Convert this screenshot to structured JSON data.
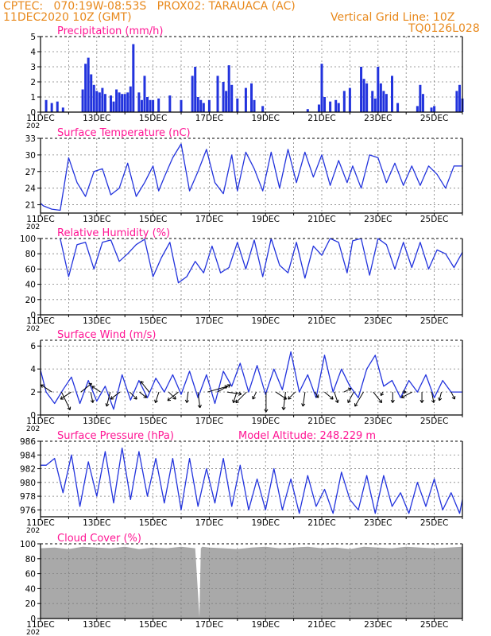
{
  "header": {
    "line1": "CPTEC:   070:19W-08:53S   PROX02: TARAUACA (AC)",
    "line2": "11DEC2020 10Z (GMT)",
    "grid_note": "Vertical Grid Line: 10Z",
    "code": "TQ0126L028"
  },
  "colors": {
    "header": "#e8891c",
    "title": "#ff1493",
    "line": "#2233dd",
    "cloud": "#a9a9a9",
    "grid": "#808080",
    "arrow": "#000000"
  },
  "x_axis": {
    "start_day": 11,
    "end_day": 26,
    "year_marker": "202",
    "tick_labels": [
      "11DEC",
      "13DEC",
      "15DEC",
      "17DEC",
      "19DEC",
      "21DEC",
      "23DEC",
      "25DEC"
    ]
  },
  "panels": [
    {
      "key": "precip",
      "title": "Precipitation (mm/h)",
      "type": "bar",
      "ylim": [
        0,
        5
      ],
      "yticks": [
        "0",
        "1",
        "2",
        "3",
        "4",
        "5"
      ]
    },
    {
      "key": "temp",
      "title": "Surface Temperature (nC)",
      "type": "line",
      "ylim": [
        19.5,
        33
      ],
      "yticks": [
        "21",
        "24",
        "27",
        "30",
        "33"
      ]
    },
    {
      "key": "rh",
      "title": "Relative Humidity (%)",
      "type": "line",
      "ylim": [
        0,
        100
      ],
      "yticks": [
        "0",
        "20",
        "40",
        "60",
        "80",
        "100"
      ]
    },
    {
      "key": "wind",
      "title": "Surface Wind (m/s)",
      "type": "line+vectors",
      "ylim": [
        0,
        6.5
      ],
      "yticks": [
        "0",
        "2",
        "4",
        "6"
      ]
    },
    {
      "key": "pres",
      "title": "Surface Pressure (hPa)",
      "extra": "Model Altitude: 248.229 m",
      "type": "line",
      "ylim": [
        975,
        986
      ],
      "yticks": [
        "976",
        "978",
        "980",
        "982",
        "984",
        "986"
      ]
    },
    {
      "key": "cloud",
      "title": "Cloud Cover (%)",
      "type": "area",
      "ylim": [
        0,
        100
      ],
      "yticks": [
        "0",
        "20",
        "40",
        "60",
        "80",
        "100"
      ]
    }
  ],
  "chart_data": [
    {
      "type": "bar",
      "title": "Precipitation (mm/h)",
      "x_unit": "day of DEC 2020 (GMT)",
      "x": [
        11.2,
        11.4,
        11.6,
        11.8,
        12.5,
        12.6,
        12.7,
        12.8,
        12.9,
        13.0,
        13.1,
        13.2,
        13.3,
        13.5,
        13.6,
        13.7,
        13.8,
        13.9,
        14.0,
        14.1,
        14.2,
        14.3,
        14.5,
        14.6,
        14.7,
        14.8,
        14.9,
        15.0,
        15.2,
        15.6,
        16.0,
        16.4,
        16.5,
        16.6,
        16.7,
        16.8,
        17.0,
        17.3,
        17.5,
        17.6,
        17.7,
        17.8,
        18.0,
        18.3,
        18.5,
        18.6,
        18.9,
        20.5,
        20.9,
        21.0,
        21.1,
        21.3,
        21.5,
        21.6,
        21.8,
        22.0,
        22.4,
        22.5,
        22.6,
        22.8,
        22.9,
        23.0,
        23.1,
        23.2,
        23.3,
        23.5,
        23.7,
        24.4,
        24.5,
        24.6,
        24.9,
        25.0,
        25.8,
        25.9,
        26.0
      ],
      "values": [
        0.8,
        0.6,
        0.7,
        0.3,
        1.5,
        3.2,
        3.6,
        2.5,
        1.8,
        1.4,
        1.3,
        1.6,
        1.2,
        1.1,
        0.7,
        1.5,
        1.3,
        1.2,
        1.2,
        1.3,
        1.7,
        4.5,
        1.3,
        0.8,
        2.4,
        1.0,
        0.8,
        0.8,
        0.9,
        1.1,
        0.8,
        2.4,
        3.0,
        1.0,
        0.8,
        0.6,
        0.8,
        2.4,
        2.0,
        1.4,
        3.1,
        1.8,
        0.9,
        1.6,
        1.9,
        0.8,
        0.4,
        0.2,
        0.5,
        3.2,
        1.0,
        0.7,
        0.8,
        0.6,
        1.4,
        1.6,
        3.0,
        2.2,
        1.9,
        1.4,
        0.9,
        3.0,
        1.9,
        1.4,
        1.2,
        2.4,
        0.6,
        0.4,
        1.8,
        1.2,
        0.3,
        0.4,
        1.4,
        1.8,
        0.9
      ]
    },
    {
      "type": "line",
      "title": "Surface Temperature (nC)",
      "x_unit": "day of DEC 2020 (GMT)",
      "x": [
        11.0,
        11.1,
        11.4,
        11.7,
        12.0,
        12.3,
        12.6,
        12.9,
        13.2,
        13.5,
        13.8,
        14.1,
        14.4,
        14.7,
        15.0,
        15.2,
        15.4,
        15.7,
        16.0,
        16.3,
        16.6,
        16.9,
        17.2,
        17.5,
        17.8,
        18.0,
        18.3,
        18.6,
        18.9,
        19.2,
        19.5,
        19.8,
        20.1,
        20.4,
        20.7,
        21.0,
        21.3,
        21.6,
        21.9,
        22.1,
        22.4,
        22.7,
        23.0,
        23.3,
        23.6,
        23.9,
        24.2,
        24.5,
        24.8,
        25.1,
        25.4,
        25.7,
        26.0
      ],
      "values": [
        21.3,
        20.8,
        20.2,
        20.0,
        29.5,
        25.0,
        22.5,
        27.0,
        27.5,
        22.8,
        24.0,
        28.5,
        22.5,
        25.0,
        28.0,
        23.5,
        26.0,
        29.5,
        32.0,
        23.5,
        27.0,
        31.0,
        25.0,
        23.0,
        30.0,
        23.5,
        30.5,
        27.5,
        23.5,
        30.5,
        24.0,
        31.0,
        25.0,
        30.5,
        26.0,
        30.0,
        24.5,
        29.0,
        25.0,
        28.0,
        24.0,
        30.0,
        29.5,
        25.0,
        28.5,
        24.5,
        28.0,
        24.5,
        28.0,
        26.5,
        24.0,
        28.0,
        28.0
      ]
    },
    {
      "type": "line",
      "title": "Relative Humidity (%)",
      "x_unit": "day of DEC 2020 (GMT)",
      "x": [
        11.7,
        12.0,
        12.3,
        12.6,
        12.9,
        13.2,
        13.5,
        13.8,
        14.1,
        14.4,
        14.7,
        15.0,
        15.3,
        15.6,
        15.9,
        16.2,
        16.5,
        16.8,
        17.1,
        17.4,
        17.7,
        18.0,
        18.3,
        18.6,
        18.9,
        19.2,
        19.5,
        19.8,
        20.1,
        20.4,
        20.7,
        21.0,
        21.3,
        21.6,
        21.9,
        22.1,
        22.4,
        22.7,
        23.0,
        23.3,
        23.6,
        23.9,
        24.2,
        24.5,
        24.8,
        25.1,
        25.4,
        25.7,
        26.0
      ],
      "values": [
        100,
        50,
        92,
        95,
        60,
        95,
        98,
        70,
        80,
        92,
        99,
        50,
        75,
        95,
        42,
        50,
        70,
        55,
        90,
        55,
        62,
        95,
        60,
        98,
        50,
        100,
        65,
        55,
        95,
        48,
        90,
        78,
        100,
        95,
        55,
        97,
        100,
        52,
        100,
        92,
        60,
        95,
        62,
        95,
        60,
        85,
        80,
        62,
        82
      ]
    },
    {
      "type": "line",
      "title": "Surface Wind (m/s)",
      "x_unit": "day of DEC 2020 (GMT)",
      "x": [
        11.0,
        11.2,
        11.5,
        11.8,
        12.1,
        12.4,
        12.7,
        13.0,
        13.3,
        13.6,
        13.9,
        14.2,
        14.5,
        14.8,
        15.1,
        15.4,
        15.7,
        16.0,
        16.3,
        16.6,
        16.9,
        17.2,
        17.5,
        17.8,
        18.1,
        18.4,
        18.7,
        19.0,
        19.3,
        19.6,
        19.9,
        20.2,
        20.5,
        20.8,
        21.1,
        21.4,
        21.7,
        22.0,
        22.3,
        22.6,
        22.9,
        23.2,
        23.5,
        23.8,
        24.1,
        24.4,
        24.7,
        25.0,
        25.3,
        25.6,
        26.0
      ],
      "values": [
        3.9,
        2.0,
        1.0,
        2.2,
        3.3,
        1.0,
        3.0,
        1.2,
        2.5,
        0.5,
        3.5,
        1.3,
        3.0,
        1.5,
        3.2,
        2.0,
        3.5,
        1.8,
        3.8,
        1.5,
        3.5,
        1.0,
        3.8,
        2.5,
        4.5,
        2.0,
        4.3,
        1.8,
        4.0,
        2.2,
        5.5,
        2.0,
        3.5,
        1.5,
        5.2,
        2.0,
        4.0,
        2.5,
        1.5,
        4.0,
        5.2,
        2.5,
        3.0,
        1.5,
        3.0,
        2.0,
        3.5,
        1.5,
        3.0,
        2.0,
        2.0
      ],
      "vectors_u": [
        -1.5,
        1.2,
        -1.5,
        1.5,
        0.3,
        -1.2,
        -0.5,
        -1.3,
        1.0,
        1.0,
        -1.2,
        -0.5,
        1.0,
        -1.5,
        -0.2,
        0.3,
        2.8,
        1.8,
        2.0,
        -0.5,
        -1.5,
        -0.5,
        0.0,
        1.5,
        -0.3,
        -1.0,
        -0.3,
        0.5,
        1.2,
        0.5,
        1.0,
        -0.8,
        -1.2,
        1.2,
        -0.3,
        0.0,
        0.5,
        -1.5,
        0.0,
        0.3,
        -0.3,
        0.5
      ],
      "vectors_v": [
        1.0,
        -2.5,
        -1.0,
        1.2,
        -1.5,
        0.8,
        -2.0,
        -1.0,
        -1.0,
        -0.8,
        1.5,
        -1.5,
        -1.0,
        -1.2,
        -1.5,
        -2.2,
        0.8,
        1.0,
        -0.3,
        -1.5,
        -1.5,
        -1.0,
        -2.8,
        -1.0,
        -2.5,
        -1.0,
        -2.0,
        -0.8,
        -1.0,
        -1.5,
        0.5,
        -1.5,
        -2.0,
        -1.5,
        -0.5,
        -1.5,
        0.0,
        -0.8,
        -1.5,
        -1.5,
        -1.2,
        -1.0
      ]
    },
    {
      "type": "line",
      "title": "Surface Pressure (hPa)",
      "x_unit": "day of DEC 2020 (GMT)",
      "x": [
        11.0,
        11.2,
        11.5,
        11.8,
        12.1,
        12.4,
        12.7,
        13.0,
        13.3,
        13.6,
        13.9,
        14.2,
        14.5,
        14.8,
        15.1,
        15.4,
        15.7,
        16.0,
        16.3,
        16.6,
        16.9,
        17.2,
        17.5,
        17.8,
        18.1,
        18.4,
        18.7,
        19.0,
        19.3,
        19.6,
        19.9,
        20.2,
        20.5,
        20.8,
        21.1,
        21.4,
        21.7,
        22.0,
        22.3,
        22.6,
        22.9,
        23.2,
        23.5,
        23.8,
        24.1,
        24.4,
        24.7,
        25.0,
        25.3,
        25.6,
        25.9,
        26.0
      ],
      "values": [
        982.5,
        982.5,
        983.5,
        978.5,
        984.0,
        976.5,
        983.0,
        978.0,
        984.5,
        977.0,
        985.0,
        977.5,
        984.5,
        978.0,
        983.5,
        977.0,
        983.5,
        976.0,
        983.5,
        976.5,
        982.0,
        977.0,
        983.5,
        976.5,
        982.5,
        976.0,
        980.5,
        976.0,
        982.0,
        976.0,
        980.5,
        975.5,
        981.0,
        976.5,
        979.0,
        975.5,
        981.5,
        977.5,
        976.0,
        981.0,
        975.5,
        981.0,
        976.5,
        978.5,
        975.5,
        980.0,
        976.5,
        980.5,
        976.0,
        978.5,
        975.5,
        977.5
      ]
    },
    {
      "type": "area",
      "title": "Cloud Cover (%)",
      "x_unit": "day of DEC 2020 (GMT)",
      "x": [
        11.0,
        11.5,
        12.0,
        12.5,
        13.0,
        13.5,
        14.0,
        14.5,
        15.0,
        15.5,
        16.0,
        16.5,
        16.65,
        16.7,
        16.75,
        17.0,
        17.5,
        18.0,
        18.5,
        19.0,
        19.5,
        20.0,
        20.5,
        21.0,
        21.5,
        22.0,
        22.5,
        23.0,
        23.5,
        24.0,
        24.5,
        25.0,
        25.5,
        26.0
      ],
      "values": [
        94,
        95,
        93,
        96,
        95,
        94,
        96,
        93,
        95,
        94,
        96,
        94,
        2,
        94,
        96,
        95,
        94,
        93,
        95,
        96,
        94,
        95,
        96,
        94,
        95,
        93,
        96,
        95,
        94,
        96,
        95,
        94,
        95,
        96
      ]
    }
  ]
}
